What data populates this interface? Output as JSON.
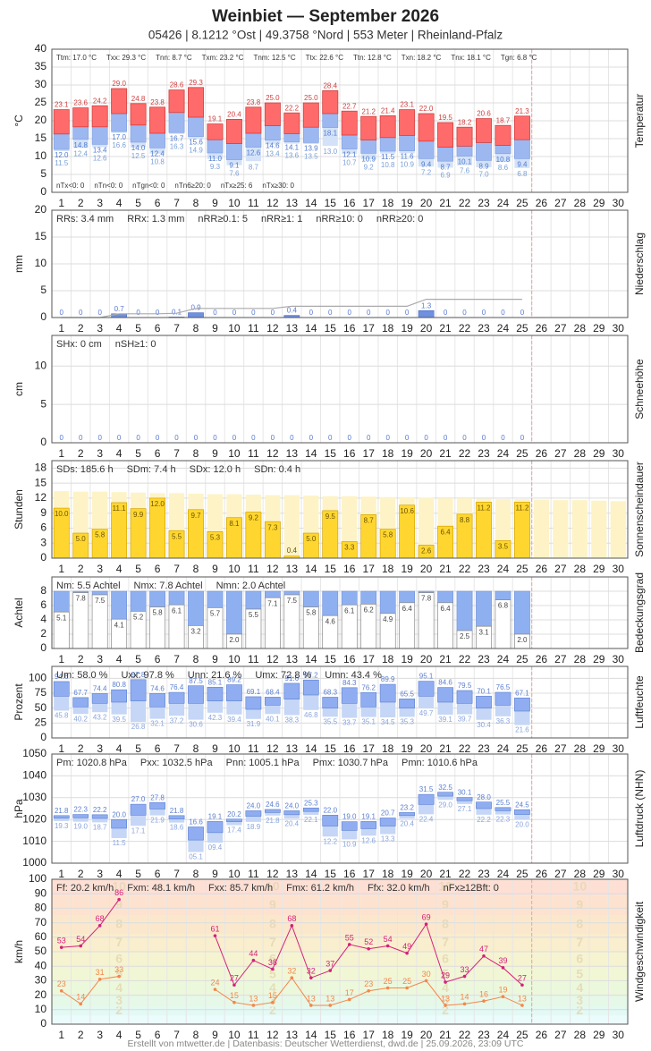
{
  "title": "Weinbiet  —  September 2026",
  "subtitle": "05426  |  8.1212 °Ost  |  49.3758 °Nord  |  553 Meter  |  Rheinland-Pfalz",
  "footer": "Erstellt von mtwetter.de | Datenbasis: Deutscher Wetterdienst, dwd.de | 25.09.2026, 23:09 UTC",
  "days": [
    1,
    2,
    3,
    4,
    5,
    6,
    7,
    8,
    9,
    10,
    11,
    12,
    13,
    14,
    15,
    16,
    17,
    18,
    19,
    20,
    21,
    22,
    23,
    24,
    25,
    26,
    27,
    28,
    29,
    30
  ],
  "chart_data": [
    {
      "type": "temperature",
      "ylabel": "°C",
      "side_label": "Temperatur",
      "ylim": [
        0,
        40
      ],
      "yticks": [
        0,
        5,
        10,
        15,
        20,
        25,
        30,
        35,
        40
      ],
      "stats": [
        "Ttm: 17.0 °C",
        "Txx: 29.3 °C",
        "Tnn: 8.7 °C",
        "Txm: 23.2 °C",
        "Tnm: 12.5 °C",
        "Ttx: 22.6 °C",
        "Ttn: 12.8 °C",
        "Txn: 18.2 °C",
        "Tnx: 18.1 °C",
        "Tgn: 6.8 °C"
      ],
      "stats_bottom": [
        "nTx<0: 0",
        "nTn<0: 0",
        "nTgn<0: 0",
        "nTn6≥20: 0",
        "nTx≥25: 6",
        "nTx≥30: 0"
      ],
      "max": {
        "color": "#ff6b6b",
        "values": [
          23.1,
          23.6,
          24.2,
          29.0,
          24.8,
          23.8,
          28.6,
          29.3,
          19.1,
          20.4,
          23.8,
          25.0,
          22.2,
          25.0,
          28.4,
          22.7,
          21.2,
          21.4,
          23.1,
          22.0,
          19.5,
          18.2,
          20.6,
          18.7,
          21.3,
          null,
          null,
          null,
          null,
          null
        ],
        "value_labels": [
          "23.1",
          "23.6",
          "24.2",
          "29.0",
          "24.8",
          "23.8",
          "28.6",
          "29.3",
          "19.1",
          "20.4",
          "23.8",
          "25.0",
          "22.2",
          "25.0",
          "28.4",
          "22.7",
          "21.2",
          "21.4",
          "23.1",
          "22.0",
          "19.5",
          "18.2",
          "20.6",
          "18.7",
          "21.3",
          null,
          null,
          null,
          null,
          null
        ]
      },
      "mean": {
        "color": "#9db8f0",
        "values": [
          16.3,
          18.3,
          18.3,
          22.0,
          18.8,
          16.5,
          22.3,
          21.0,
          14.7,
          13.6,
          16.5,
          18.6,
          16.4,
          18.2,
          22.0,
          16.0,
          14.6,
          15.3,
          15.9,
          14.3,
          12.6,
          12.9,
          13.9,
          13.1,
          14.7,
          null,
          null,
          null,
          null,
          null
        ]
      },
      "min": {
        "color": "#d3e2f8",
        "values": [
          12.0,
          14.8,
          13.4,
          17.0,
          14.0,
          12.4,
          16.7,
          15.6,
          11.0,
          9.1,
          12.6,
          14.6,
          14.1,
          13.9,
          18.1,
          12.1,
          10.9,
          11.5,
          11.6,
          9.4,
          8.7,
          10.1,
          8.9,
          10.8,
          9.4,
          null,
          null,
          null,
          null,
          null
        ],
        "value_labels": [
          "12.0",
          "14.8",
          "13.4",
          "17.0",
          "14.0",
          "12.4",
          "16.7",
          "15.6",
          "11.0",
          "9.1",
          "12.6",
          "14.6",
          "14.1",
          "13.9",
          "18.1",
          "12.1",
          "10.9",
          "11.5",
          "11.6",
          "9.4",
          "8.7",
          "10.1",
          "8.9",
          "10.8",
          "9.4",
          null,
          null,
          null,
          null,
          null
        ]
      },
      "ground": {
        "values": [
          11.5,
          12.4,
          12.6,
          16.6,
          12.5,
          10.8,
          16.3,
          14.9,
          9.3,
          7.6,
          8.7,
          13.4,
          13.6,
          13.5,
          13.0,
          10.7,
          9.2,
          10.8,
          10.9,
          7.2,
          6.9,
          7.6,
          7.0,
          8.6,
          6.8,
          null,
          null,
          null,
          null,
          null
        ],
        "value_labels": [
          "11.5",
          "12.4",
          "12.6",
          "16.6",
          "12.5",
          "10.8",
          "16.3",
          "14.9",
          "9.3",
          "7.6",
          "8.7",
          "13.4",
          "13.6",
          "13.5",
          "13.0",
          "10.7",
          "9.2",
          "10.8",
          "10.9",
          "7.2",
          "6.9",
          "7.6",
          "7.0",
          "8.6",
          "6.8",
          null,
          null,
          null,
          null,
          null
        ]
      }
    },
    {
      "type": "bar",
      "ylabel": "mm",
      "side_label": "Niederschlag",
      "ylim": [
        0,
        20
      ],
      "yticks": [
        0,
        5,
        10,
        15,
        20
      ],
      "color": "#6f8fe0",
      "cumulative": true,
      "stats": [
        "RRs: 3.4 mm",
        "RRx: 1.3 mm",
        "nRR≥0.1: 5",
        "nRR≥1: 1",
        "nRR≥10: 0",
        "nRR≥20: 0"
      ],
      "values": [
        0,
        0,
        0,
        0.7,
        0,
        0,
        0.1,
        0.9,
        0,
        0,
        0,
        0,
        0.4,
        0,
        0,
        0,
        0,
        0,
        0,
        1.3,
        0,
        0,
        0,
        0,
        0,
        null,
        null,
        null,
        null,
        null
      ]
    },
    {
      "type": "bar",
      "ylabel": "cm",
      "side_label": "Schneehöhe",
      "ylim": [
        0,
        14
      ],
      "yticks": [
        0,
        5,
        10
      ],
      "color": "#8fa8e8",
      "stats": [
        "SHx: 0 cm",
        "nSH≥1: 0"
      ],
      "values": [
        0,
        0,
        0,
        0,
        0,
        0,
        0,
        0,
        0,
        0,
        0,
        0,
        0,
        0,
        0,
        0,
        0,
        0,
        0,
        0,
        0,
        0,
        0,
        0,
        0,
        null,
        null,
        null,
        null,
        null
      ]
    },
    {
      "type": "sunshine",
      "ylabel": "Stunden",
      "side_label": "Sonnenscheindauer",
      "ylim": [
        0,
        19.5
      ],
      "yticks": [
        0,
        3,
        6,
        9,
        12,
        15,
        18
      ],
      "color": "#ffd630",
      "possible_color": "#fdf3c6",
      "stats": [
        "SDs: 185.6 h",
        "SDm: 7.4 h",
        "SDx: 12.0 h",
        "SDn: 0.4 h"
      ],
      "possible": [
        13.4,
        13.3,
        13.3,
        13.2,
        13.1,
        13.0,
        13.0,
        12.9,
        12.8,
        12.8,
        12.7,
        12.6,
        12.6,
        12.5,
        12.4,
        12.4,
        12.3,
        12.2,
        12.2,
        12.1,
        12.0,
        12.0,
        11.9,
        11.8,
        11.8,
        11.7,
        11.6,
        11.6,
        11.5,
        11.4
      ],
      "values": [
        10.0,
        5.0,
        5.8,
        11.1,
        9.9,
        12.0,
        5.5,
        9.7,
        5.3,
        8.1,
        9.2,
        7.3,
        0.4,
        5.0,
        9.5,
        3.3,
        8.7,
        5.8,
        10.6,
        2.6,
        6.4,
        8.8,
        11.2,
        3.5,
        11.2,
        null,
        null,
        null,
        null,
        null
      ],
      "value_labels": [
        "10.0",
        "5.0",
        "5.8",
        "11.1",
        "9.9",
        "12.0",
        "5.5",
        "9.7",
        "5.3",
        "8.1",
        "9.2",
        "7.3",
        "0.4",
        "5.0",
        "9.5",
        "3.3",
        "8.7",
        "5.8",
        "10.6",
        "2.6",
        "6.4",
        "8.8",
        "11.2",
        "3.5",
        "11.2",
        null,
        null,
        null,
        null,
        null
      ]
    },
    {
      "type": "cloud",
      "ylabel": "Achtel",
      "side_label": "Bedeckungsgrad",
      "ylim": [
        0,
        10
      ],
      "yticks": [
        0,
        2,
        4,
        6,
        8
      ],
      "color": "#8fb0f0",
      "stats": [
        "Nm: 5.5 Achtel",
        "Nmx: 7.8 Achtel",
        "Nmn: 2.0 Achtel"
      ],
      "values": [
        5.1,
        7.8,
        7.5,
        4.1,
        5.2,
        5.8,
        6.1,
        3.2,
        5.7,
        2.0,
        5.5,
        7.1,
        7.5,
        5.8,
        4.6,
        6.1,
        6.2,
        4.9,
        6.4,
        7.8,
        6.4,
        2.5,
        3.1,
        6.8,
        2.0,
        null,
        null,
        null,
        null,
        null
      ],
      "value_labels": [
        "5.1",
        "7.8",
        "7.5",
        "4.1",
        "5.2",
        "5.8",
        "6.1",
        "3.2",
        "5.7",
        "2.0",
        "5.5",
        "7.1",
        "7.5",
        "5.8",
        "4.6",
        "6.1",
        "6.2",
        "4.9",
        "6.4",
        "7.8",
        "6.4",
        "2.5",
        "3.1",
        "6.8",
        "2.0",
        null,
        null,
        null,
        null,
        null
      ]
    },
    {
      "type": "range",
      "ylabel": "Prozent",
      "side_label": "Luftfeuchte",
      "ylim": [
        0,
        120
      ],
      "yticks": [
        0,
        25,
        50,
        75,
        100
      ],
      "stats": [
        "Um: 58.0 %",
        "Uxx: 97.8 %",
        "Unn: 21.6 %",
        "Umx: 72.8 %",
        "Umn: 43.4 %"
      ],
      "max": {
        "color": "#8fadf0",
        "values": [
          94.6,
          67.7,
          74.4,
          80.8,
          97.8,
          74.6,
          76.4,
          87.5,
          85.1,
          89.2,
          69.1,
          68.4,
          91.6,
          97.2,
          68.3,
          84.3,
          76.2,
          89.9,
          65.5,
          95.1,
          84.6,
          79.5,
          70.1,
          76.5,
          67.1,
          null,
          null,
          null,
          null,
          null
        ]
      },
      "mean": {
        "color": "#c5d6f6",
        "values": [
          70,
          52,
          58,
          60,
          62,
          52,
          58,
          58,
          62,
          62,
          48,
          55,
          65,
          72,
          50,
          58,
          52,
          60,
          50,
          70,
          60,
          58,
          50,
          55,
          45,
          null,
          null,
          null,
          null,
          null
        ]
      },
      "min": {
        "values": [
          45.8,
          40.2,
          43.2,
          39.5,
          26.8,
          32.1,
          37.2,
          30.6,
          42.3,
          39.4,
          31.9,
          40.1,
          38.3,
          46.8,
          35.5,
          33.7,
          35.1,
          34.5,
          35.3,
          49.7,
          39.1,
          39.7,
          30.4,
          36.3,
          21.6,
          null,
          null,
          null,
          null,
          null
        ]
      }
    },
    {
      "type": "range",
      "ylabel": "hPa",
      "side_label": "Luftdruck (NHN)",
      "ylim": [
        1000,
        1050
      ],
      "yticks": [
        1000,
        1010,
        1020,
        1030,
        1040,
        1050
      ],
      "stats": [
        "Pm: 1020.8 hPa",
        "Pxx: 1032.5 hPa",
        "Pnn: 1005.1 hPa",
        "Pmx: 1030.7 hPa",
        "Pmn: 1010.6 hPa"
      ],
      "max": {
        "color": "#8fadf0",
        "values": [
          1021.8,
          1022.3,
          1022.2,
          1020.0,
          1027.0,
          1027.8,
          1021.8,
          1016.6,
          1019.1,
          1020.2,
          1024.0,
          1024.6,
          1024.0,
          1025.3,
          1022.0,
          1019.0,
          1019.1,
          1020.7,
          1023.2,
          1031.5,
          1032.5,
          1030.1,
          1028.0,
          1025.5,
          1024.5,
          null,
          null,
          null,
          null,
          null
        ],
        "value_labels": [
          "21.8",
          "22.3",
          "22.2",
          "20.0",
          "27.0",
          "27.8",
          "21.8",
          "16.6",
          "19.1",
          "20.2",
          "24.0",
          "24.6",
          "24.0",
          "25.3",
          "22.0",
          "19.0",
          "19.1",
          "20.7",
          "23.2",
          "31.5",
          "32.5",
          "30.1",
          "28.0",
          "25.5",
          "24.5",
          null,
          null,
          null,
          null,
          null
        ]
      },
      "mean": {
        "color": "#c5d6f6",
        "values": [
          1020.6,
          1020.8,
          1020.5,
          1016.0,
          1022.0,
          1024.8,
          1020.2,
          1010.6,
          1014.0,
          1019.0,
          1021.5,
          1023.2,
          1022.2,
          1023.7,
          1017.0,
          1015.0,
          1015.8,
          1017.0,
          1021.8,
          1026.9,
          1030.7,
          1028.6,
          1025.0,
          1024.0,
          1022.3,
          null,
          null,
          null,
          null,
          null
        ]
      },
      "min": {
        "values": [
          1019.3,
          1019.0,
          1018.7,
          1011.5,
          1017.1,
          1021.9,
          1018.6,
          1005.1,
          1009.4,
          1017.4,
          1018.9,
          1021.8,
          1020.4,
          1022.1,
          1012.2,
          1010.9,
          1012.6,
          1013.3,
          1020.4,
          1022.4,
          1029.0,
          1027.1,
          1022.2,
          1022.3,
          1020.0,
          null,
          null,
          null,
          null,
          null
        ],
        "value_labels": [
          "19.3",
          "19.0",
          "18.7",
          "11.5",
          "17.1",
          "21.9",
          "18.6",
          "05.1",
          "09.4",
          "17.4",
          "18.9",
          "21.8",
          "20.4",
          "22.1",
          "12.2",
          "10.9",
          "12.6",
          "13.3",
          "20.4",
          "22.4",
          "29.0",
          "27.1",
          "22.2",
          "22.3",
          "20.0",
          null,
          null,
          null,
          null,
          null
        ]
      }
    },
    {
      "type": "line",
      "ylabel": "km/h",
      "side_label": "Windgeschwindigkeit",
      "ylim": [
        0,
        100
      ],
      "yticks": [
        0,
        10,
        20,
        30,
        40,
        50,
        60,
        70,
        80,
        90,
        100
      ],
      "stats": [
        "Ff: 20.2 km/h",
        "Fxm: 48.1 km/h",
        "Fxx: 85.7 km/h",
        "Fmx: 61.2 km/h",
        "Ffx: 32.0 km/h",
        "nFx≥12Bft: 0"
      ],
      "beaufort_levels": [
        2,
        3,
        4,
        5,
        6,
        7,
        8,
        9,
        10
      ],
      "beaufort_bounds": [
        6,
        12,
        20,
        29,
        39,
        50,
        62,
        75,
        89,
        103
      ],
      "beaufort_colors": [
        "#e3f9f4",
        "#e6f8e8",
        "#ecf8dc",
        "#f1f7d4",
        "#f6f3d0",
        "#f9eecd",
        "#fbe8cc",
        "#fde3cf",
        "#fddfd4"
      ],
      "series": [
        {
          "color": "#d4217a",
          "values": [
            53,
            54,
            68,
            86,
            null,
            null,
            null,
            null,
            61,
            27,
            44,
            38,
            68,
            32,
            37,
            55,
            52,
            54,
            49,
            69,
            29,
            33,
            47,
            39,
            27,
            null,
            null,
            null,
            null,
            null
          ]
        },
        {
          "color": "#f5864a",
          "values": [
            23,
            14,
            31,
            33,
            null,
            null,
            null,
            null,
            24,
            15,
            13,
            15,
            32,
            13,
            13,
            17,
            23,
            25,
            25,
            30,
            13,
            14,
            16,
            19,
            13,
            null,
            null,
            null,
            null,
            null
          ]
        }
      ]
    }
  ]
}
